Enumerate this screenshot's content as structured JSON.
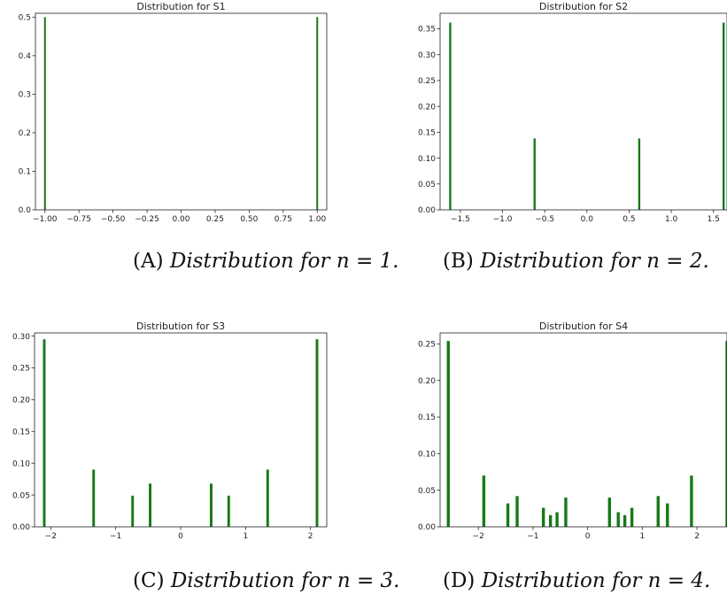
{
  "chart_data": [
    {
      "type": "bar",
      "title": "Distribution for S1",
      "xlim": [
        -1.07,
        1.07
      ],
      "ylim": [
        0,
        0.51
      ],
      "xticks": [
        -1.0,
        -0.75,
        -0.5,
        -0.25,
        0.0,
        0.25,
        0.5,
        0.75,
        1.0
      ],
      "xtick_labels": [
        "−1.00",
        "−0.75",
        "−0.50",
        "−0.25",
        "0.00",
        "0.25",
        "0.50",
        "0.75",
        "1.00"
      ],
      "yticks": [
        0.0,
        0.1,
        0.2,
        0.3,
        0.4,
        0.5
      ],
      "ytick_labels": [
        "0.0",
        "0.1",
        "0.2",
        "0.3",
        "0.4",
        "0.5"
      ],
      "bar_width": 0.01,
      "color": "#177a17",
      "x": [
        -1.0,
        1.0
      ],
      "values": [
        0.5,
        0.5
      ],
      "caption": {
        "label": "(A)",
        "text": "Distribution for",
        "math": "n = 1."
      }
    },
    {
      "type": "bar",
      "title": "Distribution for S2",
      "xlim": [
        -1.74,
        1.66
      ],
      "ylim": [
        0,
        0.38
      ],
      "xticks": [
        -1.5,
        -1.0,
        -0.5,
        0.0,
        0.5,
        1.0,
        1.5
      ],
      "xtick_labels": [
        "−1.5",
        "−1.0",
        "−0.5",
        "0.0",
        "0.5",
        "1.0",
        "1.5"
      ],
      "yticks": [
        0.0,
        0.05,
        0.1,
        0.15,
        0.2,
        0.25,
        0.3,
        0.35
      ],
      "ytick_labels": [
        "0.00",
        "0.05",
        "0.10",
        "0.15",
        "0.20",
        "0.25",
        "0.30",
        "0.35"
      ],
      "bar_width": 0.025,
      "color": "#177a17",
      "x": [
        -1.62,
        -0.62,
        0.62,
        1.62
      ],
      "values": [
        0.362,
        0.138,
        0.138,
        0.362
      ],
      "caption": {
        "label": "(B)",
        "text": "Distribution for",
        "math": "n = 2."
      }
    },
    {
      "type": "bar",
      "title": "Distribution for S3",
      "xlim": [
        -2.25,
        2.25
      ],
      "ylim": [
        0,
        0.305
      ],
      "xticks": [
        -2,
        -1,
        0,
        1,
        2
      ],
      "xtick_labels": [
        "−2",
        "−1",
        "0",
        "1",
        "2"
      ],
      "yticks": [
        0.0,
        0.05,
        0.1,
        0.15,
        0.2,
        0.25,
        0.3
      ],
      "ytick_labels": [
        "0.00",
        "0.05",
        "0.10",
        "0.15",
        "0.20",
        "0.25",
        "0.30"
      ],
      "bar_width": 0.04,
      "color": "#177a17",
      "x": [
        -2.1,
        -1.34,
        -0.74,
        -0.47,
        0.47,
        0.74,
        1.34,
        2.1
      ],
      "values": [
        0.295,
        0.09,
        0.049,
        0.068,
        0.068,
        0.049,
        0.09,
        0.295
      ],
      "caption": {
        "label": "(C)",
        "text": "Distribution for",
        "math": "n = 3."
      }
    },
    {
      "type": "bar",
      "title": "Distribution for S4",
      "xlim": [
        -2.7,
        2.55
      ],
      "ylim": [
        0,
        0.265
      ],
      "xticks": [
        -2,
        -1,
        0,
        1,
        2
      ],
      "xtick_labels": [
        "−2",
        "−1",
        "0",
        "1",
        "2"
      ],
      "yticks": [
        0.0,
        0.05,
        0.1,
        0.15,
        0.2,
        0.25
      ],
      "ytick_labels": [
        "0.00",
        "0.05",
        "0.10",
        "0.15",
        "0.20",
        "0.25"
      ],
      "bar_width": 0.055,
      "color": "#177a17",
      "x": [
        -2.55,
        -1.9,
        -1.46,
        -1.29,
        -0.81,
        -0.68,
        -0.56,
        -0.4,
        0.4,
        0.56,
        0.68,
        0.81,
        1.29,
        1.46,
        1.9,
        2.55
      ],
      "values": [
        0.254,
        0.07,
        0.032,
        0.042,
        0.026,
        0.016,
        0.02,
        0.04,
        0.04,
        0.02,
        0.016,
        0.026,
        0.042,
        0.032,
        0.07,
        0.254
      ],
      "caption": {
        "label": "(D)",
        "text": "Distribution for",
        "math": "n = 4."
      }
    }
  ]
}
